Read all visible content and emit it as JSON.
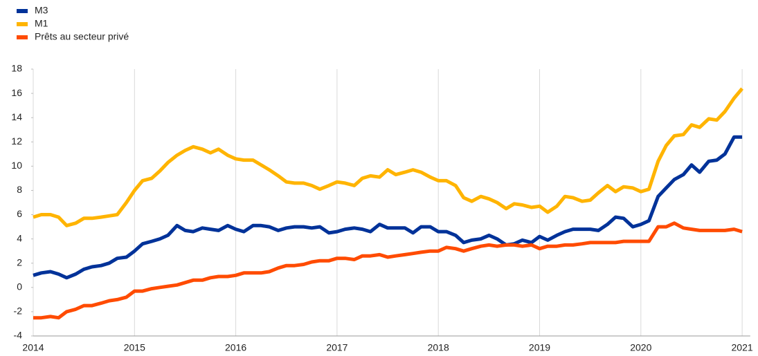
{
  "chart_data": {
    "type": "line",
    "x": [
      2014,
      2014.08,
      2014.17,
      2014.25,
      2014.33,
      2014.42,
      2014.5,
      2014.58,
      2014.67,
      2014.75,
      2014.83,
      2014.92,
      2015,
      2015.08,
      2015.17,
      2015.25,
      2015.33,
      2015.42,
      2015.5,
      2015.58,
      2015.67,
      2015.75,
      2015.83,
      2015.92,
      2016,
      2016.08,
      2016.17,
      2016.25,
      2016.33,
      2016.42,
      2016.5,
      2016.58,
      2016.67,
      2016.75,
      2016.83,
      2016.92,
      2017,
      2017.08,
      2017.17,
      2017.25,
      2017.33,
      2017.42,
      2017.5,
      2017.58,
      2017.67,
      2017.75,
      2017.83,
      2017.92,
      2018,
      2018.08,
      2018.17,
      2018.25,
      2018.33,
      2018.42,
      2018.5,
      2018.58,
      2018.67,
      2018.75,
      2018.83,
      2018.92,
      2019,
      2019.08,
      2019.17,
      2019.25,
      2019.33,
      2019.42,
      2019.5,
      2019.58,
      2019.67,
      2019.75,
      2019.83,
      2019.92,
      2020,
      2020.08,
      2020.17,
      2020.25,
      2020.33,
      2020.42,
      2020.5,
      2020.58,
      2020.67,
      2020.75,
      2020.83,
      2020.92,
      2021
    ],
    "series": [
      {
        "name": "M3",
        "color": "#003299",
        "values": [
          1.0,
          1.2,
          1.3,
          1.1,
          0.8,
          1.1,
          1.5,
          1.7,
          1.8,
          2.0,
          2.4,
          2.5,
          3.0,
          3.6,
          3.8,
          4.0,
          4.3,
          5.1,
          4.7,
          4.6,
          4.9,
          4.8,
          4.7,
          5.1,
          4.8,
          4.6,
          5.1,
          5.1,
          5.0,
          4.7,
          4.9,
          5.0,
          5.0,
          4.9,
          5.0,
          4.5,
          4.6,
          4.8,
          4.9,
          4.8,
          4.6,
          5.2,
          4.9,
          4.9,
          4.9,
          4.5,
          5.0,
          5.0,
          4.6,
          4.6,
          4.3,
          3.7,
          3.9,
          4.0,
          4.3,
          4.0,
          3.5,
          3.6,
          3.9,
          3.7,
          4.2,
          3.9,
          4.3,
          4.6,
          4.8,
          4.8,
          4.8,
          4.7,
          5.2,
          5.8,
          5.7,
          5.0,
          5.2,
          5.5,
          7.5,
          8.2,
          8.9,
          9.3,
          10.1,
          9.5,
          10.4,
          10.5,
          11.0,
          12.4,
          12.4
        ]
      },
      {
        "name": "M1",
        "color": "#ffb400",
        "values": [
          5.8,
          6.0,
          6.0,
          5.8,
          5.1,
          5.3,
          5.7,
          5.7,
          5.8,
          5.9,
          6.0,
          7.0,
          8.0,
          8.8,
          9.0,
          9.6,
          10.3,
          10.9,
          11.3,
          11.6,
          11.4,
          11.1,
          11.4,
          10.9,
          10.6,
          10.5,
          10.5,
          10.1,
          9.7,
          9.2,
          8.7,
          8.6,
          8.6,
          8.4,
          8.1,
          8.4,
          8.7,
          8.6,
          8.4,
          9.0,
          9.2,
          9.1,
          9.7,
          9.3,
          9.5,
          9.7,
          9.5,
          9.1,
          8.8,
          8.8,
          8.4,
          7.4,
          7.1,
          7.5,
          7.3,
          7.0,
          6.5,
          6.9,
          6.8,
          6.6,
          6.7,
          6.2,
          6.7,
          7.5,
          7.4,
          7.1,
          7.2,
          7.8,
          8.4,
          7.9,
          8.3,
          8.2,
          7.9,
          8.1,
          10.4,
          11.7,
          12.5,
          12.6,
          13.4,
          13.2,
          13.9,
          13.8,
          14.5,
          15.6,
          16.4
        ]
      },
      {
        "name": "Prêts au secteur privé",
        "color": "#ff4b00",
        "values": [
          -2.5,
          -2.5,
          -2.4,
          -2.5,
          -2.0,
          -1.8,
          -1.5,
          -1.5,
          -1.3,
          -1.1,
          -1.0,
          -0.8,
          -0.3,
          -0.3,
          -0.1,
          0.0,
          0.1,
          0.2,
          0.4,
          0.6,
          0.6,
          0.8,
          0.9,
          0.9,
          1.0,
          1.2,
          1.2,
          1.2,
          1.3,
          1.6,
          1.8,
          1.8,
          1.9,
          2.1,
          2.2,
          2.2,
          2.4,
          2.4,
          2.3,
          2.6,
          2.6,
          2.7,
          2.5,
          2.6,
          2.7,
          2.8,
          2.9,
          3.0,
          3.0,
          3.3,
          3.2,
          3.0,
          3.2,
          3.4,
          3.5,
          3.4,
          3.5,
          3.5,
          3.4,
          3.5,
          3.2,
          3.4,
          3.4,
          3.5,
          3.5,
          3.6,
          3.7,
          3.7,
          3.7,
          3.7,
          3.8,
          3.8,
          3.8,
          3.8,
          5.0,
          5.0,
          5.3,
          4.9,
          4.8,
          4.7,
          4.7,
          4.7,
          4.7,
          4.8,
          4.6
        ]
      }
    ],
    "xlim": [
      2014,
      2021.08
    ],
    "xticks": [
      2014,
      2015,
      2016,
      2017,
      2018,
      2019,
      2020,
      2021
    ],
    "ylim": [
      -4,
      18
    ],
    "yticks": [
      -4,
      -2,
      0,
      2,
      4,
      6,
      8,
      10,
      12,
      14,
      16,
      18
    ],
    "grid": true,
    "legend": "top-left"
  }
}
